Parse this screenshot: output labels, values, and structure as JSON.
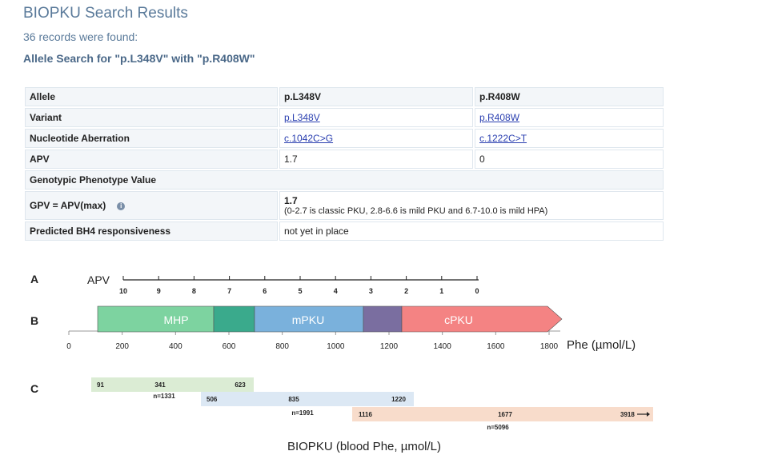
{
  "header": {
    "title": "BIOPKU Search Results",
    "records": "36 records were found:",
    "search": "Allele Search for \"p.L348V\" with \"p.R408W\""
  },
  "table": {
    "allele_label": "Allele",
    "allele_1": "p.L348V",
    "allele_2": "p.R408W",
    "variant_label": "Variant",
    "variant_1": "p.L348V",
    "variant_2": "p.R408W",
    "nuc_label": "Nucleotide Aberration",
    "nuc_1": "c.1042C>G",
    "nuc_2": "c.1222C>T",
    "apv_label": "APV",
    "apv_1": "1.7",
    "apv_2": "0",
    "gpv_header": "Genotypic Phenotype Value",
    "gpv_label": "GPV = APV(max)",
    "gpv_value": "1.7",
    "gpv_note": "(0-2.7 is classic PKU, 2.8-6.6 is mild PKU and 6.7-10.0 is mild HPA)",
    "bh4_label": "Predicted BH4 responsiveness",
    "bh4_value": "not yet in place"
  },
  "figure": {
    "row_a": "A",
    "row_b": "B",
    "row_c": "C",
    "apv_axis_label": "APV",
    "apv_ticks": [
      "10",
      "9",
      "8",
      "7",
      "6",
      "5",
      "4",
      "3",
      "2",
      "1",
      "0"
    ],
    "phe_ticks": [
      "0",
      "200",
      "400",
      "600",
      "800",
      "1000",
      "1200",
      "1400",
      "1600",
      "1800"
    ],
    "phe_axis_label": "Phe (µmol/L)",
    "bands": {
      "mhp": "MHP",
      "mpku": "mPKU",
      "cpku": "cPKU"
    },
    "ranges": [
      {
        "min": "91",
        "median": "341",
        "max": "623",
        "n": "n=1331"
      },
      {
        "min": "506",
        "median": "835",
        "max": "1220",
        "n": "n=1991"
      },
      {
        "min": "1116",
        "median": "1677",
        "max": "3918",
        "n": "n=5096"
      }
    ],
    "caption": "BIOPKU (blood Phe, µmol/L)"
  }
}
